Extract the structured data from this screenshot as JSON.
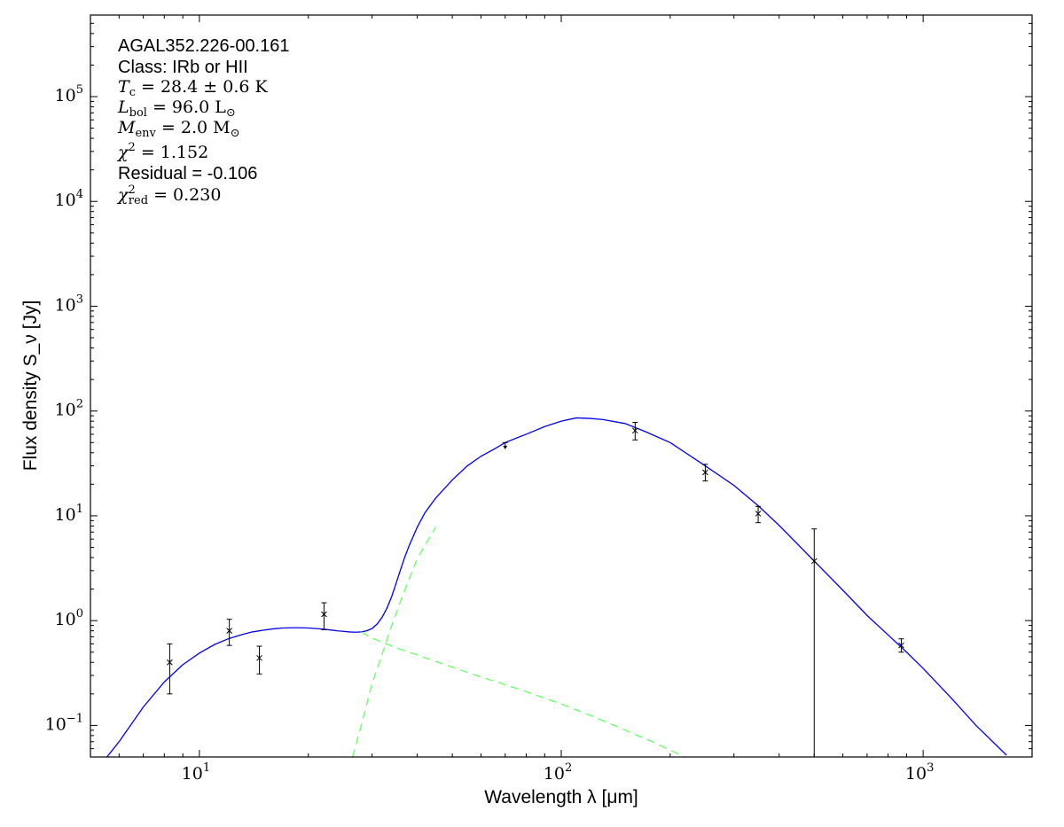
{
  "chart_data": {
    "type": "scatter",
    "title": "",
    "xlabel": "Wavelength λ [μm]",
    "ylabel": "Flux density S_ν [Jy]",
    "xscale": "log",
    "yscale": "log",
    "xlim": [
      5,
      2000
    ],
    "ylim": [
      0.05,
      600000
    ],
    "x_ticks": [
      {
        "value": 10,
        "base": "10",
        "exp": "1"
      },
      {
        "value": 100,
        "base": "10",
        "exp": "2"
      },
      {
        "value": 1000,
        "base": "10",
        "exp": "3"
      }
    ],
    "y_ticks": [
      {
        "value": 0.1,
        "base": "10",
        "exp": "−1"
      },
      {
        "value": 1,
        "base": "10",
        "exp": "0"
      },
      {
        "value": 10,
        "base": "10",
        "exp": "1"
      },
      {
        "value": 100,
        "base": "10",
        "exp": "2"
      },
      {
        "value": 1000,
        "base": "10",
        "exp": "3"
      },
      {
        "value": 10000,
        "base": "10",
        "exp": "4"
      },
      {
        "value": 100000,
        "base": "10",
        "exp": "5"
      }
    ],
    "grid": false,
    "annotations": {
      "source": "AGAL352.226-00.161",
      "class": "Class: IRb or HII",
      "tc": "T_c = 28.4 ± 0.6 K",
      "lbol": "L_bol = 96.0 L_⊙",
      "menv": "M_env = 2.0 M_⊙",
      "chi2": "χ² = 1.152",
      "residual": "Residual = -0.106",
      "chi2red": "χ²_red = 0.230"
    },
    "annotation_parts": {
      "tc": {
        "sym": "T",
        "sub": "c",
        "val": " = 28.4 ± 0.6 K"
      },
      "lbol": {
        "sym": "L",
        "sub": "bol",
        "val": " = 96.0 L",
        "tail": "⊙"
      },
      "menv": {
        "sym": "M",
        "sub": "env",
        "val": " = 2.0 M",
        "tail": "⊙"
      },
      "chi2": {
        "sym": "χ",
        "sup": "2",
        "val": " = 1.152"
      },
      "chi2red": {
        "sym": "χ",
        "sup": "2",
        "sub": "red",
        "val": " = 0.230"
      }
    },
    "series": [
      {
        "type": "scatter",
        "points": [
          {
            "x": 8.28,
            "y": 0.4,
            "ylo": 0.2,
            "yhi": 0.6
          },
          {
            "x": 12.1,
            "y": 0.8,
            "ylo": 0.58,
            "yhi": 1.03
          },
          {
            "x": 14.65,
            "y": 0.44,
            "ylo": 0.31,
            "yhi": 0.57
          },
          {
            "x": 22.1,
            "y": 1.15,
            "ylo": 0.82,
            "yhi": 1.48
          },
          {
            "x": 160,
            "y": 65,
            "ylo": 53,
            "yhi": 78
          },
          {
            "x": 250,
            "y": 26,
            "ylo": 21.5,
            "yhi": 31
          },
          {
            "x": 350,
            "y": 10.5,
            "ylo": 8.6,
            "yhi": 12.3
          },
          {
            "x": 500,
            "y": 3.7,
            "ylo": 0.05,
            "yhi": 7.5
          },
          {
            "x": 870,
            "y": 0.58,
            "ylo": 0.5,
            "yhi": 0.67
          }
        ],
        "upper_limits": [
          {
            "x": 70,
            "y": 50,
            "ylo": 44
          }
        ]
      },
      {
        "type": "line",
        "style": "solid",
        "points": [
          [
            5.5,
            0.048
          ],
          [
            6,
            0.07
          ],
          [
            7,
            0.15
          ],
          [
            8,
            0.26
          ],
          [
            9,
            0.38
          ],
          [
            10,
            0.49
          ],
          [
            11,
            0.59
          ],
          [
            12,
            0.67
          ],
          [
            13,
            0.73
          ],
          [
            14,
            0.78
          ],
          [
            15,
            0.81
          ],
          [
            16,
            0.835
          ],
          [
            17,
            0.85
          ],
          [
            18,
            0.855
          ],
          [
            19,
            0.855
          ],
          [
            20,
            0.85
          ],
          [
            21,
            0.84
          ],
          [
            22,
            0.83
          ],
          [
            23,
            0.815
          ],
          [
            24,
            0.8
          ],
          [
            25,
            0.79
          ],
          [
            26,
            0.78
          ],
          [
            27,
            0.775
          ],
          [
            28,
            0.78
          ],
          [
            29,
            0.8
          ],
          [
            30,
            0.84
          ],
          [
            31,
            0.93
          ],
          [
            32,
            1.08
          ],
          [
            33,
            1.32
          ],
          [
            34,
            1.7
          ],
          [
            35,
            2.3
          ],
          [
            36,
            3.1
          ],
          [
            37,
            4.1
          ],
          [
            38,
            5.2
          ],
          [
            40,
            7.8
          ],
          [
            42,
            10.7
          ],
          [
            45,
            14.8
          ],
          [
            50,
            22
          ],
          [
            55,
            30
          ],
          [
            60,
            37
          ],
          [
            65,
            43
          ],
          [
            70,
            50
          ],
          [
            75,
            55
          ],
          [
            80,
            60
          ],
          [
            90,
            71
          ],
          [
            100,
            80
          ],
          [
            110,
            86
          ],
          [
            120,
            85
          ],
          [
            130,
            83
          ],
          [
            150,
            76
          ],
          [
            170,
            64
          ],
          [
            200,
            50
          ],
          [
            250,
            30
          ],
          [
            300,
            19.5
          ],
          [
            350,
            12.5
          ],
          [
            400,
            8.1
          ],
          [
            500,
            3.7
          ],
          [
            600,
            1.95
          ],
          [
            700,
            1.12
          ],
          [
            800,
            0.73
          ],
          [
            900,
            0.5
          ],
          [
            1000,
            0.35
          ],
          [
            1200,
            0.18
          ],
          [
            1400,
            0.1
          ],
          [
            1700,
            0.052
          ]
        ],
        "color": "#0000ee"
      },
      {
        "type": "line",
        "style": "dashed",
        "points": [
          [
            28,
            0.78
          ],
          [
            30,
            0.68
          ],
          [
            35,
            0.55
          ],
          [
            40,
            0.47
          ],
          [
            50,
            0.36
          ],
          [
            60,
            0.29
          ],
          [
            70,
            0.245
          ],
          [
            80,
            0.21
          ],
          [
            100,
            0.16
          ],
          [
            120,
            0.125
          ],
          [
            140,
            0.1
          ],
          [
            160,
            0.082
          ],
          [
            180,
            0.069
          ],
          [
            200,
            0.058
          ],
          [
            220,
            0.05
          ]
        ],
        "color": "#66ff66"
      },
      {
        "type": "line",
        "style": "dashed",
        "points": [
          [
            26.5,
            0.05
          ],
          [
            28,
            0.1
          ],
          [
            30,
            0.25
          ],
          [
            32,
            0.48
          ],
          [
            34,
            0.9
          ],
          [
            36,
            1.55
          ],
          [
            38,
            2.5
          ],
          [
            40,
            3.9
          ],
          [
            43,
            6.0
          ],
          [
            45,
            7.8
          ]
        ],
        "color": "#66ff66"
      }
    ]
  }
}
